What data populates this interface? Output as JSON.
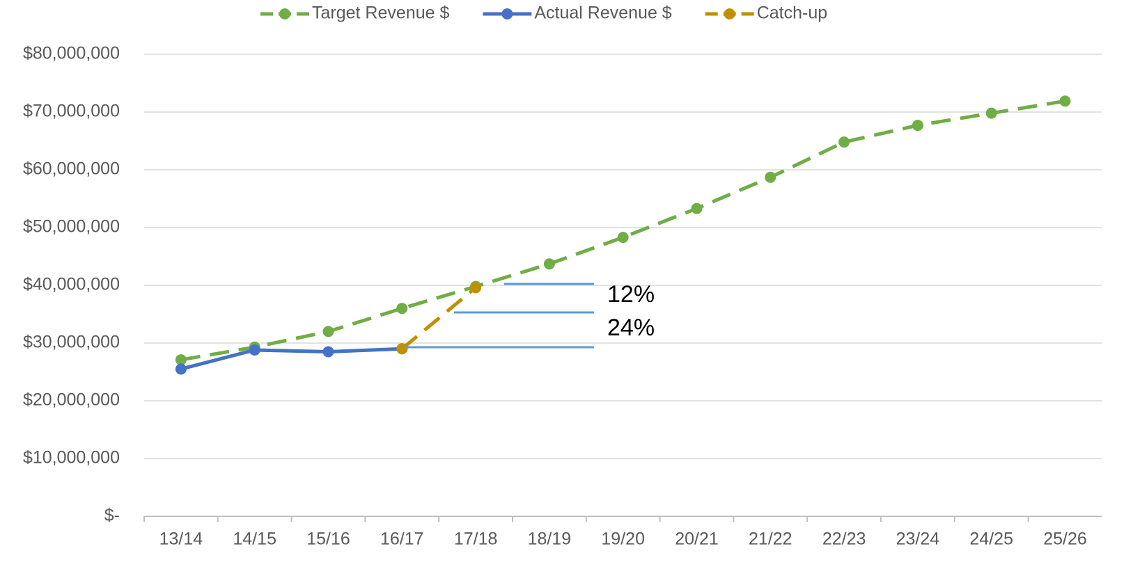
{
  "chart_data": {
    "type": "line",
    "categories": [
      "13/14",
      "14/15",
      "15/16",
      "16/17",
      "17/18",
      "18/19",
      "19/20",
      "20/21",
      "21/22",
      "22/23",
      "23/24",
      "24/25",
      "25/26"
    ],
    "series": [
      {
        "name": "Target Revenue $",
        "color": "#70ad47",
        "dashed": true,
        "values": [
          27100000,
          29300000,
          32000000,
          36000000,
          39800000,
          43700000,
          48300000,
          53300000,
          58700000,
          64800000,
          67700000,
          69800000,
          71900000
        ]
      },
      {
        "name": "Actual Revenue $",
        "color": "#4472c4",
        "dashed": false,
        "values": [
          25500000,
          28800000,
          28500000,
          29000000,
          null,
          null,
          null,
          null,
          null,
          null,
          null,
          null,
          null
        ]
      },
      {
        "name": "Catch-up",
        "color": "#bf9000",
        "dashed": true,
        "values": [
          null,
          null,
          null,
          29000000,
          39600000,
          null,
          null,
          null,
          null,
          null,
          null,
          null,
          null
        ]
      }
    ],
    "ylim": [
      0,
      80000000
    ],
    "yticks": [
      {
        "value": 0,
        "label": "$-"
      },
      {
        "value": 10000000,
        "label": "$10,000,000"
      },
      {
        "value": 20000000,
        "label": "$20,000,000"
      },
      {
        "value": 30000000,
        "label": "$30,000,000"
      },
      {
        "value": 40000000,
        "label": "$40,000,000"
      },
      {
        "value": 50000000,
        "label": "$50,000,000"
      },
      {
        "value": 60000000,
        "label": "$60,000,000"
      },
      {
        "value": 70000000,
        "label": "$70,000,000"
      },
      {
        "value": 80000000,
        "label": "$80,000,000"
      }
    ],
    "grid": true,
    "legend": "top",
    "annotations": [
      "12%",
      "24%"
    ]
  }
}
